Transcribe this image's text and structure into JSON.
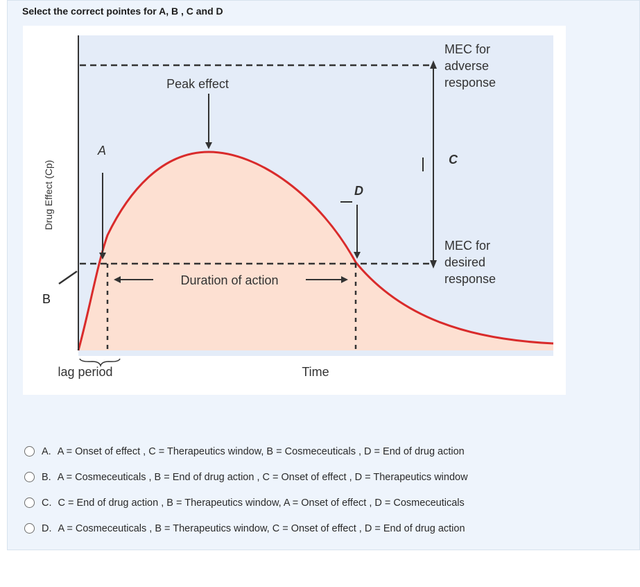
{
  "question": "Select the correct pointes for A, B , C and D",
  "figure": {
    "y_axis_label": "Drug Effect (Cp)",
    "x_axis_label": "Time",
    "lag_period": "lag period",
    "peak_effect": "Peak effect",
    "duration": "Duration of action",
    "mec_adverse": [
      "MEC for",
      "adverse",
      "response"
    ],
    "mec_desired": [
      "MEC for",
      "desired",
      "response"
    ],
    "label_a": "A",
    "label_b": "B",
    "label_c": "C",
    "label_d": "D",
    "colors": {
      "panel": "#e4ecf8",
      "fill": "#fde0d2",
      "curve": "#d92b2b",
      "line": "#333333"
    }
  },
  "options": [
    {
      "letter": "A.",
      "text": "A = Onset of effect , C = Therapeutics window, B = Cosmeceuticals ,  D = End of drug action"
    },
    {
      "letter": "B.",
      "text": "A = Cosmeceuticals , B = End of drug action , C = Onset of effect , D = Therapeutics window"
    },
    {
      "letter": "C.",
      "text": "C = End of drug action , B = Therapeutics window, A = Onset of effect , D =  Cosmeceuticals"
    },
    {
      "letter": "D.",
      "text": "A = Cosmeceuticals , B = Therapeutics window, C = Onset of effect , D = End of drug action"
    }
  ]
}
